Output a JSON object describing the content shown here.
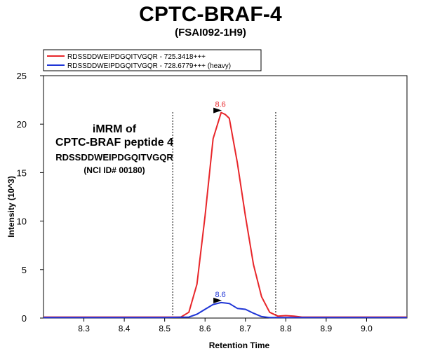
{
  "title": "CPTC-BRAF-4",
  "subtitle": "(FSAI092-1H9)",
  "annotation": {
    "line1": "iMRM of",
    "line2": "CPTC-BRAF peptide 4",
    "line3": "RDSSDDWEIPDGQITVGQR",
    "line4": "(NCI ID# 00180)"
  },
  "chart_data": {
    "type": "line",
    "xlabel": "Retention Time",
    "ylabel": "Intensity (10^3)",
    "xlim": [
      8.2,
      9.1
    ],
    "ylim": [
      0,
      25
    ],
    "xticks": [
      "8.3",
      "8.4",
      "8.5",
      "8.6",
      "8.7",
      "8.8",
      "8.9",
      "9.0"
    ],
    "yticks": [
      "0",
      "5",
      "10",
      "15",
      "20",
      "25"
    ],
    "vlines": [
      8.52,
      8.775
    ],
    "legend_position": "top-left",
    "series": [
      {
        "name": "RDSSDDWEIPDGQITVGQR - 725.3418+++",
        "color": "#e8262a",
        "x": [
          8.2,
          8.5,
          8.54,
          8.56,
          8.58,
          8.6,
          8.62,
          8.64,
          8.65,
          8.66,
          8.68,
          8.7,
          8.72,
          8.74,
          8.76,
          8.78,
          8.8,
          8.82,
          8.84,
          9.1
        ],
        "y": [
          0.1,
          0.1,
          0.1,
          0.6,
          3.5,
          10.5,
          18.5,
          21.2,
          21.0,
          20.6,
          16.0,
          10.5,
          5.5,
          2.2,
          0.6,
          0.2,
          0.25,
          0.2,
          0.1,
          0.1
        ],
        "peak_label": "8.6",
        "peak_x": 8.645,
        "peak_y": 21.2
      },
      {
        "name": "RDSSDDWEIPDGQITVGQR - 728.6779+++ (heavy)",
        "color": "#1f35d6",
        "x": [
          8.2,
          8.5,
          8.56,
          8.58,
          8.6,
          8.62,
          8.64,
          8.65,
          8.66,
          8.68,
          8.7,
          8.72,
          8.74,
          8.76,
          8.78,
          9.1
        ],
        "y": [
          0.05,
          0.05,
          0.1,
          0.4,
          0.9,
          1.4,
          1.6,
          1.55,
          1.5,
          1.0,
          0.9,
          0.5,
          0.15,
          0.05,
          0.05,
          0.05
        ],
        "peak_label": "8.6",
        "peak_x": 8.645,
        "peak_y": 1.6
      }
    ]
  }
}
